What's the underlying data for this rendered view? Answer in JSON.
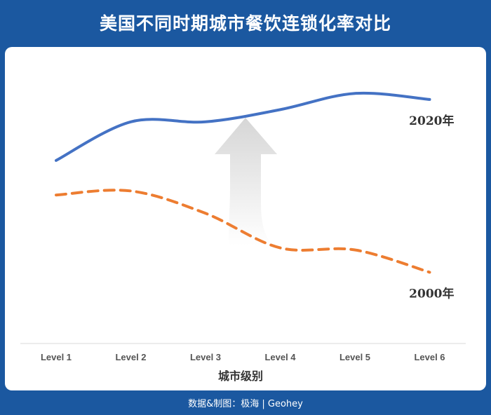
{
  "title": "美国不同时期城市餐饮连锁化率对比",
  "footer": "数据&制图：极海 | Geohey",
  "chart_data": {
    "type": "line",
    "title": "美国不同时期城市餐饮连锁化率对比",
    "xlabel": "城市级别",
    "ylabel": "",
    "categories": [
      "Level 1",
      "Level 2",
      "Level 3",
      "Level 4",
      "Level 5",
      "Level 6"
    ],
    "ylim": [
      0,
      100
    ],
    "grid": false,
    "series": [
      {
        "name": "2020年",
        "values": [
          59,
          78,
          78,
          84,
          92,
          89
        ],
        "color": "#4472c4",
        "style": "solid"
      },
      {
        "name": "2000年",
        "values": [
          42,
          44,
          33,
          16,
          15,
          4
        ],
        "color": "#ed7d31",
        "style": "dashed"
      }
    ],
    "annotations": [
      {
        "type": "up-arrow",
        "at": [
          "Level 3",
          "Level 4"
        ]
      }
    ]
  }
}
